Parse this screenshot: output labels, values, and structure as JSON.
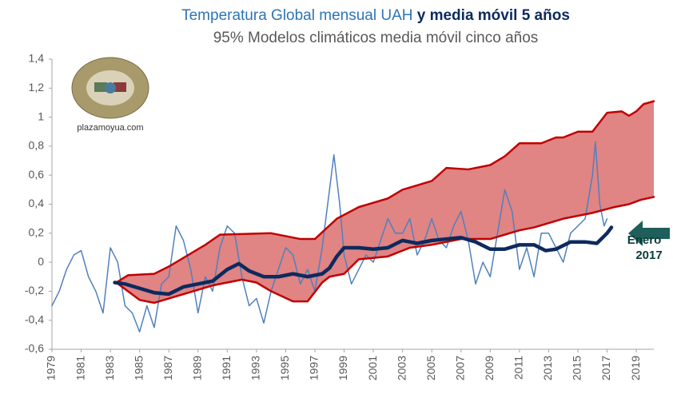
{
  "chart_data": {
    "type": "line",
    "title": [
      "Temperatura Global mensual UAH",
      "y media móvil 5 años"
    ],
    "title_colors": [
      "#2e75b6",
      "#0d2a5e"
    ],
    "subtitle": "95% Modelos climáticos media móvil cinco años",
    "subtitle_color": "#c00000",
    "annotation": [
      "Enero",
      "2017"
    ],
    "annotation_color": "#0d3b3b",
    "arrow_color": "#1f5f5b",
    "logo_text": "plazamoyua.com",
    "band_fill": "#e08484",
    "xlim": [
      1979,
      2020.2
    ],
    "xticks": [
      1979,
      1981,
      1983,
      1985,
      1987,
      1989,
      1991,
      1993,
      1995,
      1997,
      1999,
      2001,
      2003,
      2005,
      2007,
      2009,
      2011,
      2013,
      2015,
      2017,
      2019
    ],
    "ylim": [
      -0.6,
      1.4
    ],
    "yticks": [
      {
        "value": -0.6,
        "label": "-0,6"
      },
      {
        "value": -0.4,
        "label": "-0,4"
      },
      {
        "value": -0.2,
        "label": "-0,2"
      },
      0,
      {
        "value": 0.2,
        "label": "0,2"
      },
      {
        "value": 0.4,
        "label": "0,4"
      },
      {
        "value": 0.6,
        "label": "0,6"
      },
      {
        "value": 0.8,
        "label": "0,8"
      },
      1,
      {
        "value": 1.2,
        "label": "1,2"
      },
      {
        "value": 1.4,
        "label": "1,4"
      }
    ],
    "series": [
      {
        "color": "#c00000",
        "linewidth": 2.5,
        "x": [
          1983.4,
          1984.2,
          1986,
          1987,
          1989.5,
          1990.5,
          1994,
          1996,
          1997,
          1998.5,
          2000,
          2002,
          2003,
          2005,
          2006,
          2007.5,
          2009,
          2010,
          2011,
          2012.5,
          2013.5,
          2014,
          2015,
          2016,
          2017,
          2018,
          2018.5,
          2019,
          2019.5,
          2020.2
        ],
        "values": [
          -0.14,
          -0.09,
          -0.08,
          -0.03,
          0.12,
          0.19,
          0.2,
          0.16,
          0.16,
          0.3,
          0.38,
          0.44,
          0.5,
          0.56,
          0.65,
          0.64,
          0.67,
          0.73,
          0.82,
          0.82,
          0.86,
          0.86,
          0.9,
          0.9,
          1.03,
          1.04,
          1.01,
          1.04,
          1.09,
          1.11
        ]
      },
      {
        "color": "#c00000",
        "linewidth": 2.5,
        "x": [
          1983.4,
          1985,
          1986,
          1988,
          1990,
          1992,
          1993,
          1994,
          1995.5,
          1996.5,
          1997.5,
          1998,
          1999,
          2000,
          2002,
          2003.5,
          2005,
          2007,
          2009,
          2011,
          2012,
          2014,
          2016,
          2017.5,
          2018.5,
          2019.3,
          2020.2
        ],
        "values": [
          -0.14,
          -0.26,
          -0.28,
          -0.22,
          -0.16,
          -0.12,
          -0.14,
          -0.2,
          -0.27,
          -0.27,
          -0.14,
          -0.1,
          -0.08,
          0.02,
          0.04,
          0.1,
          0.12,
          0.16,
          0.16,
          0.22,
          0.24,
          0.3,
          0.34,
          0.38,
          0.4,
          0.43,
          0.45
        ]
      },
      {
        "color": "#4f81bd",
        "linewidth": 1.5,
        "x": [
          1979,
          1979.5,
          1980,
          1980.5,
          1981,
          1981.5,
          1982,
          1982.5,
          1983,
          1983.5,
          1984,
          1984.5,
          1985,
          1985.5,
          1986,
          1986.5,
          1987,
          1987.5,
          1988,
          1988.5,
          1989,
          1989.5,
          1990,
          1990.5,
          1991,
          1991.5,
          1992,
          1992.5,
          1993,
          1993.5,
          1994,
          1994.5,
          1995,
          1995.5,
          1996,
          1996.5,
          1997,
          1997.5,
          1998,
          1998.3,
          1998.7,
          1999,
          1999.5,
          2000,
          2000.5,
          2001,
          2001.5,
          2002,
          2002.5,
          2003,
          2003.5,
          2004,
          2004.5,
          2005,
          2005.5,
          2006,
          2006.5,
          2007,
          2007.5,
          2008,
          2008.5,
          2009,
          2009.5,
          2010,
          2010.5,
          2011,
          2011.5,
          2012,
          2012.5,
          2013,
          2013.5,
          2014,
          2014.5,
          2015,
          2015.5,
          2016,
          2016.2,
          2016.5,
          2016.8,
          2017
        ],
        "values": [
          -0.3,
          -0.2,
          -0.05,
          0.05,
          0.08,
          -0.1,
          -0.2,
          -0.35,
          0.1,
          0.0,
          -0.3,
          -0.35,
          -0.48,
          -0.3,
          -0.45,
          -0.15,
          -0.1,
          0.25,
          0.15,
          -0.05,
          -0.35,
          -0.1,
          -0.2,
          0.1,
          0.25,
          0.2,
          -0.1,
          -0.3,
          -0.25,
          -0.42,
          -0.2,
          -0.05,
          0.1,
          0.05,
          -0.15,
          -0.05,
          -0.2,
          0.1,
          0.5,
          0.74,
          0.4,
          0.05,
          -0.15,
          -0.05,
          0.05,
          0.0,
          0.15,
          0.3,
          0.2,
          0.2,
          0.3,
          0.05,
          0.15,
          0.3,
          0.15,
          0.1,
          0.25,
          0.35,
          0.15,
          -0.15,
          0.0,
          -0.1,
          0.2,
          0.5,
          0.35,
          -0.05,
          0.1,
          -0.1,
          0.2,
          0.2,
          0.1,
          0.0,
          0.2,
          0.25,
          0.3,
          0.6,
          0.83,
          0.4,
          0.25,
          0.3
        ]
      },
      {
        "color": "#0d2a5e",
        "linewidth": 4.5,
        "x": [
          1983.3,
          1984,
          1985,
          1986,
          1987,
          1988,
          1989,
          1990,
          1991,
          1991.8,
          1992.5,
          1993.5,
          1994.5,
          1995.5,
          1996.5,
          1997.5,
          1998,
          1998.5,
          1999,
          2000,
          2001,
          2002,
          2003,
          2004,
          2005,
          2006,
          2007,
          2008,
          2009,
          2010,
          2011,
          2012,
          2012.8,
          2013.5,
          2014.5,
          2015.5,
          2016.3,
          2017,
          2017.3
        ],
        "values": [
          -0.14,
          -0.15,
          -0.18,
          -0.21,
          -0.22,
          -0.17,
          -0.15,
          -0.13,
          -0.05,
          -0.01,
          -0.06,
          -0.1,
          -0.1,
          -0.08,
          -0.1,
          -0.08,
          -0.04,
          0.04,
          0.1,
          0.1,
          0.09,
          0.1,
          0.15,
          0.13,
          0.15,
          0.16,
          0.17,
          0.14,
          0.09,
          0.09,
          0.12,
          0.12,
          0.08,
          0.09,
          0.14,
          0.14,
          0.13,
          0.2,
          0.24
        ]
      }
    ]
  }
}
